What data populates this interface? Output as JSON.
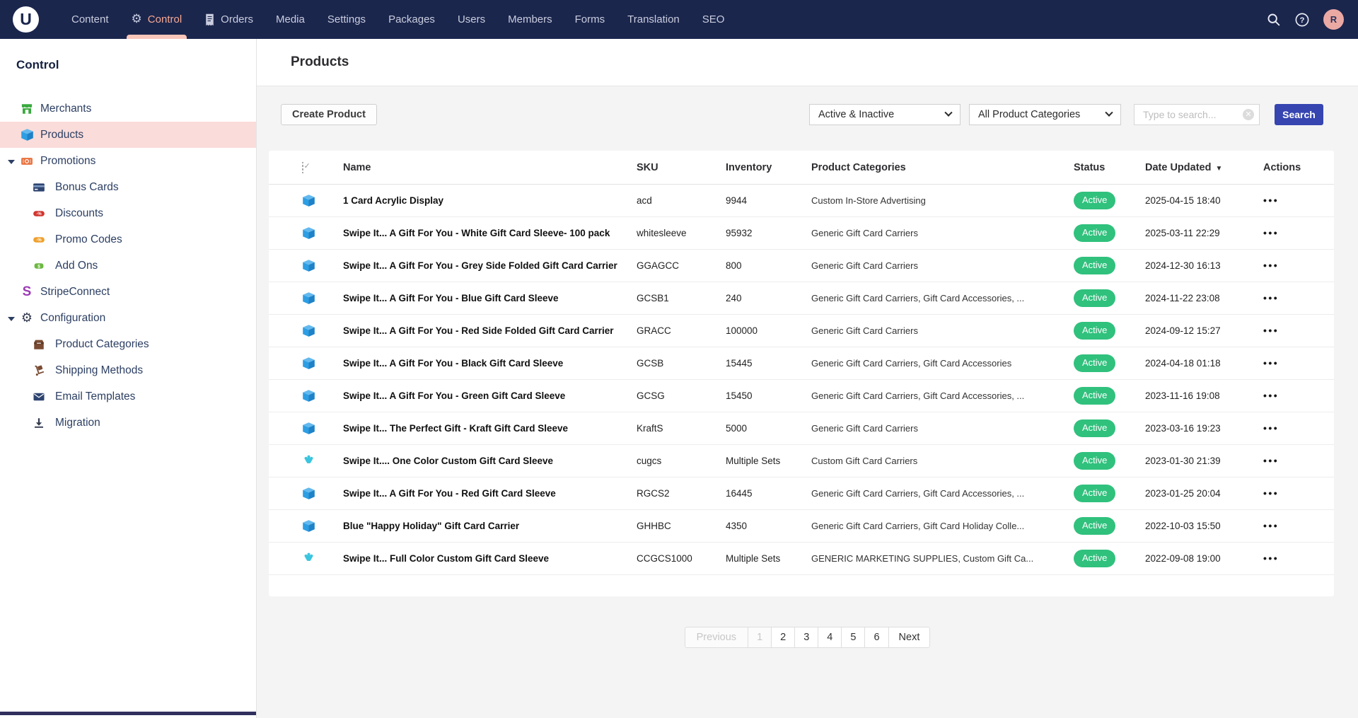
{
  "colors": {
    "nav_background": "#1b264d",
    "nav_active_text": "#f5a893",
    "selected_item_background": "#fadcda",
    "active_badge_green": "#30c17d",
    "search_button_blue": "#3645b0"
  },
  "nav": {
    "logo_letter": "U",
    "avatar_initial": "R",
    "items": [
      {
        "label": "Content"
      },
      {
        "label": "Control",
        "icon": "gear-icon",
        "active": true
      },
      {
        "label": "Orders",
        "icon": "receipt-icon"
      },
      {
        "label": "Media"
      },
      {
        "label": "Settings"
      },
      {
        "label": "Packages"
      },
      {
        "label": "Users"
      },
      {
        "label": "Members"
      },
      {
        "label": "Forms"
      },
      {
        "label": "Translation"
      },
      {
        "label": "SEO"
      }
    ]
  },
  "sidebar": {
    "title": "Control",
    "items": [
      {
        "label": "Merchants",
        "icon": "storefront-icon",
        "level": 0
      },
      {
        "label": "Products",
        "icon": "products-box-icon",
        "level": 0,
        "selected": true
      },
      {
        "label": "Promotions",
        "icon": "promotions-icon",
        "level": 0,
        "expandable": true
      },
      {
        "label": "Bonus Cards",
        "icon": "bonus-cards-icon",
        "level": 1
      },
      {
        "label": "Discounts",
        "icon": "discounts-icon",
        "level": 1
      },
      {
        "label": "Promo Codes",
        "icon": "promo-codes-icon",
        "level": 1
      },
      {
        "label": "Add Ons",
        "icon": "add-ons-icon",
        "level": 1
      },
      {
        "label": "StripeConnect",
        "icon": "stripe-icon",
        "level": 0
      },
      {
        "label": "Configuration",
        "icon": "gear-dark-icon",
        "level": 0,
        "expandable": true
      },
      {
        "label": "Product Categories",
        "icon": "product-categories-icon",
        "level": 1
      },
      {
        "label": "Shipping Methods",
        "icon": "shipping-methods-icon",
        "level": 1
      },
      {
        "label": "Email Templates",
        "icon": "email-templates-icon",
        "level": 1
      },
      {
        "label": "Migration",
        "icon": "migration-icon",
        "level": 1
      }
    ]
  },
  "page": {
    "title": "Products",
    "create_button_label": "Create Product",
    "filters": {
      "status_select_value": "Active & Inactive",
      "category_select_value": "All Product Categories",
      "search_placeholder": "Type to search...",
      "search_button_label": "Search"
    },
    "table": {
      "columns": [
        "Name",
        "SKU",
        "Inventory",
        "Product Categories",
        "Status",
        "Date Updated",
        "Actions"
      ],
      "sorted_by": "Date Updated",
      "sort_direction": "descending",
      "rows": [
        {
          "icon": "cube-icon",
          "name": "1 Card Acrylic Display",
          "sku": "acd",
          "inventory": "9944",
          "categories": "Custom In-Store Advertising",
          "status": "Active",
          "date_updated": "2025-04-15 18:40"
        },
        {
          "icon": "cube-icon",
          "name": "Swipe It... A Gift For You - White Gift Card Sleeve- 100 pack",
          "sku": "whitesleeve",
          "inventory": "95932",
          "categories": "Generic Gift Card Carriers",
          "status": "Active",
          "date_updated": "2025-03-11 22:29"
        },
        {
          "icon": "cube-icon",
          "name": "Swipe It... A Gift For You - Grey Side Folded Gift Card Carrier",
          "sku": "GGAGCC",
          "inventory": "800",
          "categories": "Generic Gift Card Carriers",
          "status": "Active",
          "date_updated": "2024-12-30 16:13"
        },
        {
          "icon": "cube-icon",
          "name": "Swipe It... A Gift For You - Blue Gift Card Sleeve",
          "sku": "GCSB1",
          "inventory": "240",
          "categories": "Generic Gift Card Carriers, Gift Card Accessories, ...",
          "status": "Active",
          "date_updated": "2024-11-22 23:08"
        },
        {
          "icon": "cube-icon",
          "name": "Swipe It... A Gift For You - Red Side Folded Gift Card Carrier",
          "sku": "GRACC",
          "inventory": "100000",
          "categories": "Generic Gift Card Carriers",
          "status": "Active",
          "date_updated": "2024-09-12 15:27"
        },
        {
          "icon": "cube-icon",
          "name": "Swipe It... A Gift For You - Black Gift Card Sleeve",
          "sku": "GCSB",
          "inventory": "15445",
          "categories": "Generic Gift Card Carriers, Gift Card Accessories",
          "status": "Active",
          "date_updated": "2024-04-18 01:18"
        },
        {
          "icon": "cube-icon",
          "name": "Swipe It... A Gift For You - Green Gift Card Sleeve",
          "sku": "GCSG",
          "inventory": "15450",
          "categories": "Generic Gift Card Carriers, Gift Card Accessories, ...",
          "status": "Active",
          "date_updated": "2023-11-16 19:08"
        },
        {
          "icon": "cube-icon",
          "name": "Swipe It... The Perfect Gift - Kraft Gift Card Sleeve",
          "sku": "KraftS",
          "inventory": "5000",
          "categories": "Generic Gift Card Carriers",
          "status": "Active",
          "date_updated": "2023-03-16 19:23"
        },
        {
          "icon": "fan-icon",
          "name": "Swipe It.... One Color Custom Gift Card Sleeve",
          "sku": "cugcs",
          "inventory": "Multiple Sets",
          "categories": "Custom Gift Card Carriers",
          "status": "Active",
          "date_updated": "2023-01-30 21:39"
        },
        {
          "icon": "cube-icon",
          "name": "Swipe It... A Gift For You - Red Gift Card Sleeve",
          "sku": "RGCS2",
          "inventory": "16445",
          "categories": "Generic Gift Card Carriers, Gift Card Accessories, ...",
          "status": "Active",
          "date_updated": "2023-01-25 20:04"
        },
        {
          "icon": "cube-icon",
          "name": "Blue \"Happy Holiday\" Gift Card Carrier",
          "sku": "GHHBC",
          "inventory": "4350",
          "categories": "Generic Gift Card Carriers, Gift Card Holiday Colle...",
          "status": "Active",
          "date_updated": "2022-10-03 15:50"
        },
        {
          "icon": "fan-icon",
          "name": "Swipe It... Full Color Custom Gift Card Sleeve",
          "sku": "CCGCS1000",
          "inventory": "Multiple Sets",
          "categories": "GENERIC MARKETING SUPPLIES, Custom Gift Ca...",
          "status": "Active",
          "date_updated": "2022-09-08 19:00"
        }
      ]
    },
    "pagination": {
      "items": [
        {
          "label": "Previous",
          "disabled": true
        },
        {
          "label": "1",
          "disabled": true,
          "current": true
        },
        {
          "label": "2"
        },
        {
          "label": "3"
        },
        {
          "label": "4"
        },
        {
          "label": "5"
        },
        {
          "label": "6"
        },
        {
          "label": "Next"
        }
      ]
    }
  }
}
